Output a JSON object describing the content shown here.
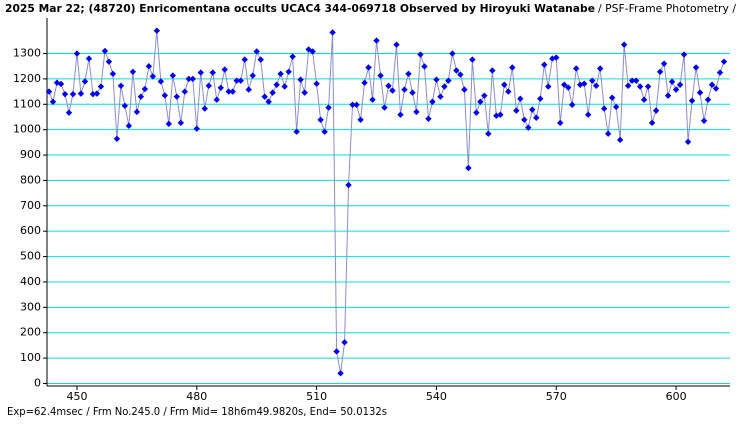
{
  "chart_data": {
    "type": "line",
    "title": "2025 Mar 22; (48720) Enricomentana occults UCAC4 344-069718 Observed by Hiroyuki Watanabe",
    "method": "/ PSF-Frame Photometry /",
    "footer": "Exp=62.4msec / Frm No.245.0 / Frm Mid= 18h6m49.9820s,  End= 50.0132s",
    "x": [
      443,
      444,
      445,
      446,
      447,
      448,
      449,
      450,
      451,
      452,
      453,
      454,
      455,
      456,
      457,
      458,
      459,
      460,
      461,
      462,
      463,
      464,
      465,
      466,
      467,
      468,
      469,
      470,
      471,
      472,
      473,
      474,
      475,
      476,
      477,
      478,
      479,
      480,
      481,
      482,
      483,
      484,
      485,
      486,
      487,
      488,
      489,
      490,
      491,
      492,
      493,
      494,
      495,
      496,
      497,
      498,
      499,
      500,
      501,
      502,
      503,
      504,
      505,
      506,
      507,
      508,
      509,
      510,
      511,
      512,
      513,
      514,
      515,
      516,
      517,
      518,
      519,
      520,
      521,
      522,
      523,
      524,
      525,
      526,
      527,
      528,
      529,
      530,
      531,
      532,
      533,
      534,
      535,
      536,
      537,
      538,
      539,
      540,
      541,
      542,
      543,
      544,
      545,
      546,
      547,
      548,
      549,
      550,
      551,
      552,
      553,
      554,
      555,
      556,
      557,
      558,
      559,
      560,
      561,
      562,
      563,
      564,
      565,
      566,
      567,
      568,
      569,
      570,
      571,
      572,
      573,
      574,
      575,
      576,
      577,
      578,
      579,
      580,
      581,
      582,
      583,
      584,
      585,
      586,
      587,
      588,
      589,
      590,
      591,
      592,
      593,
      594,
      595,
      596,
      597,
      598,
      599,
      600,
      601,
      602,
      603,
      604,
      605,
      606,
      607,
      608,
      609,
      610,
      611,
      612
    ],
    "series": [
      {
        "color": "#0000ee",
        "line_color": "#8c8cd0",
        "values": [
          1150,
          1110,
          1185,
          1180,
          1140,
          1067,
          1140,
          1300,
          1142,
          1190,
          1280,
          1140,
          1142,
          1170,
          1310,
          1268,
          1220,
          964,
          1173,
          1094,
          1015,
          1228,
          1070,
          1130,
          1160,
          1250,
          1210,
          1390,
          1190,
          1135,
          1023,
          1213,
          1130,
          1027,
          1150,
          1200,
          1200,
          1004,
          1225,
          1083,
          1173,
          1225,
          1118,
          1165,
          1237,
          1150,
          1150,
          1193,
          1193,
          1276,
          1158,
          1213,
          1308,
          1276,
          1130,
          1110,
          1146,
          1177,
          1220,
          1170,
          1228,
          1288,
          992,
          1197,
          1146,
          1316,
          1308,
          1181,
          1039,
          992,
          1087,
          1383,
          126,
          40,
          162,
          782,
          1098,
          1098,
          1039,
          1185,
          1245,
          1118,
          1351,
          1213,
          1087,
          1173,
          1154,
          1335,
          1059,
          1158,
          1220,
          1146,
          1070,
          1296,
          1249,
          1043,
          1110,
          1197,
          1130,
          1170,
          1193,
          1300,
          1233,
          1217,
          1158,
          849,
          1276,
          1067,
          1110,
          1134,
          984,
          1233,
          1055,
          1059,
          1177,
          1150,
          1245,
          1075,
          1122,
          1039,
          1008,
          1079,
          1047,
          1122,
          1256,
          1170,
          1280,
          1284,
          1027,
          1177,
          1166,
          1098,
          1241,
          1177,
          1181,
          1059,
          1193,
          1173,
          1241,
          1083,
          984,
          1126,
          1090,
          960,
          1335,
          1173,
          1193,
          1193,
          1170,
          1118,
          1170,
          1027,
          1075,
          1228,
          1260,
          1134,
          1189,
          1158,
          1177,
          1296,
          952,
          1114,
          1245,
          1146,
          1035,
          1118,
          1177,
          1162,
          1225,
          1268
        ]
      }
    ],
    "xlim": [
      442.5,
      613.5
    ],
    "xticks": [
      450,
      480,
      510,
      540,
      570,
      600
    ],
    "ylim": [
      -10,
      1440
    ],
    "yticks": [
      0,
      100,
      200,
      300,
      400,
      500,
      600,
      700,
      800,
      900,
      1000,
      1100,
      1200,
      1300
    ],
    "grid": true,
    "grid_color": "#00e0e0"
  }
}
